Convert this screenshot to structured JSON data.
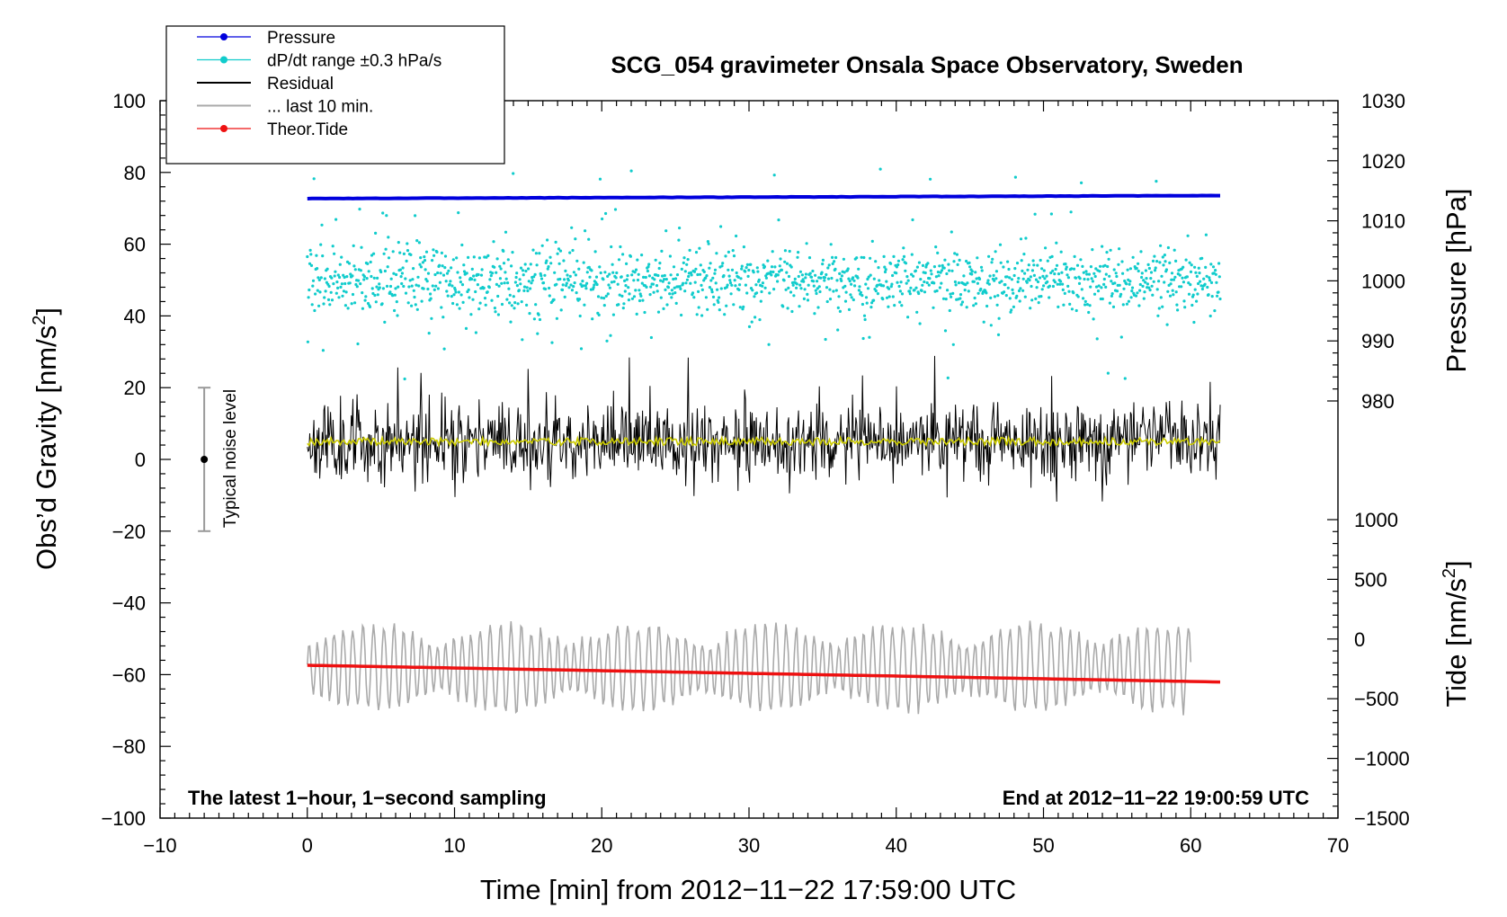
{
  "chart_data": {
    "type": "line",
    "title": "SCG_054 gravimeter Onsala Space Observatory, Sweden",
    "xlabel": "Time [min] from 2012−11−22 17:59:00 UTC",
    "ylabel_main": "Obs’d Gravity [nm/s²]",
    "ylabel_main_text": "Obs’d Gravity [nm/s",
    "ylabel_main_sup": "2",
    "ylabel_main_tail": "]",
    "ylabel_pressure": "Pressure [hPa]",
    "ylabel_tide": "Tide [nm/s²]",
    "ylabel_tide_text": "Tide [nm/s",
    "ylabel_tide_sup": "2",
    "ylabel_tide_tail": "]",
    "xlim": [
      -10,
      70
    ],
    "ylim": [
      -100,
      100
    ],
    "pressure_axis_range": [
      980,
      1030
    ],
    "tide_axis_range": [
      -1500,
      1000
    ],
    "x_ticks": [
      "−10",
      "0",
      "10",
      "20",
      "30",
      "40",
      "50",
      "60",
      "70"
    ],
    "x_tick_values": [
      -10,
      0,
      10,
      20,
      30,
      40,
      50,
      60,
      70
    ],
    "y_ticks": [
      "100",
      "80",
      "60",
      "40",
      "20",
      "0",
      "−20",
      "−40",
      "−60",
      "−80",
      "−100"
    ],
    "y_tick_values": [
      100,
      80,
      60,
      40,
      20,
      0,
      -20,
      -40,
      -60,
      -80,
      -100
    ],
    "pressure_ticks": [
      "1030",
      "1020",
      "1010",
      "1000",
      "990",
      "980"
    ],
    "pressure_tick_values": [
      1030,
      1020,
      1010,
      1000,
      990,
      980
    ],
    "tide_ticks": [
      "1000",
      "500",
      "0",
      "−500",
      "−1000",
      "−1500"
    ],
    "tide_tick_values": [
      1000,
      500,
      0,
      -500,
      -1000,
      -1500
    ],
    "legend": [
      {
        "label": "Pressure",
        "color": "#0000dd",
        "style": "line-dot"
      },
      {
        "label": "dP/dt range ±0.3 hPa/s",
        "color": "#11cccc",
        "style": "line-dot"
      },
      {
        "label": "Residual",
        "color": "#000000",
        "style": "line"
      },
      {
        "label": "... last 10 min.",
        "color": "#aaaaaa",
        "style": "line"
      },
      {
        "label": "Theor.Tide",
        "color": "#ee1111",
        "style": "line-dot"
      }
    ],
    "annotations": {
      "bottom_left": "The latest 1−hour, 1−second sampling",
      "bottom_right": "End at 2012−11−22 19:00:59 UTC",
      "noise_label": "Typical noise level"
    },
    "noise_bar": {
      "x": -7,
      "center": 0,
      "low": -20,
      "high": 20
    },
    "series": [
      {
        "name": "Pressure",
        "color": "#0000dd",
        "axis": "pressure",
        "x_start": 0,
        "x_end": 62,
        "y_start": 1013.7,
        "y_end": 1014.2
      },
      {
        "name": "dP/dt range ±0.3 hPa/s",
        "color": "#11cccc",
        "axis": "gravity_plot_units",
        "x_start": 0,
        "x_end": 62,
        "center": 50,
        "spread": 6,
        "outliers_min": 22,
        "outliers_max": 81
      },
      {
        "name": "Residual",
        "color": "#000000",
        "axis": "gravity",
        "x_start": 0,
        "x_end": 62,
        "center": 5,
        "min": -14,
        "max": 30
      },
      {
        "name": "Residual (smoothed)",
        "color": "#cccc00",
        "axis": "gravity",
        "x_start": 0,
        "x_end": 62,
        "center": 5
      },
      {
        "name": "... last 10 min.",
        "color": "#aaaaaa",
        "axis": "gravity",
        "x_start": 0,
        "x_end": 60,
        "center": -58,
        "min": -73,
        "max": -40
      },
      {
        "name": "Theor.Tide",
        "color": "#ee1111",
        "axis": "tide",
        "x_start": 0,
        "x_end": 62,
        "y_start": -220,
        "y_end": -360
      }
    ]
  }
}
